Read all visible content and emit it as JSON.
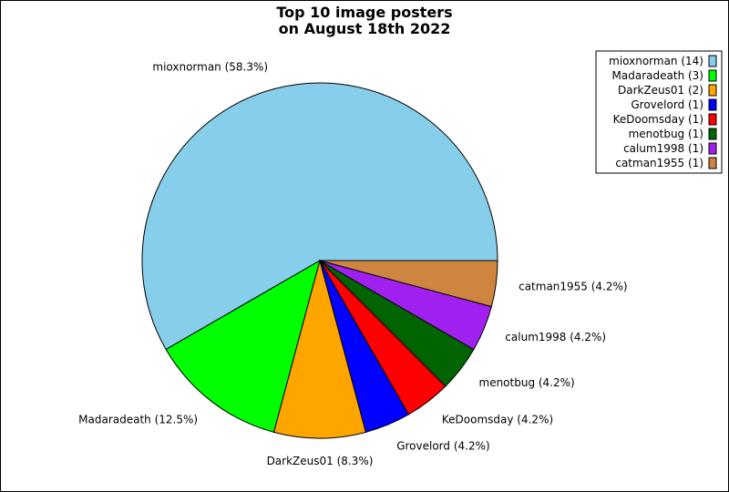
{
  "chart_data": {
    "type": "pie",
    "title_lines": [
      "Top 10 image posters",
      "on August 18th 2022"
    ],
    "legend_position": "top-right",
    "slices": [
      {
        "name": "mioxnorman",
        "count": 14,
        "percent_label": "mioxnorman (58.3%)",
        "legend_label": "mioxnorman (14)",
        "color": "#87ceeb"
      },
      {
        "name": "Madaradeath",
        "count": 3,
        "percent_label": "Madaradeath (12.5%)",
        "legend_label": "Madaradeath (3)",
        "color": "#00ff00"
      },
      {
        "name": "DarkZeus01",
        "count": 2,
        "percent_label": "DarkZeus01 (8.3%)",
        "legend_label": "DarkZeus01 (2)",
        "color": "#ffa500"
      },
      {
        "name": "Grovelord",
        "count": 1,
        "percent_label": "Grovelord (4.2%)",
        "legend_label": "Grovelord (1)",
        "color": "#0000ff"
      },
      {
        "name": "KeDoomsday",
        "count": 1,
        "percent_label": "KeDoomsday (4.2%)",
        "legend_label": "KeDoomsday (1)",
        "color": "#ff0000"
      },
      {
        "name": "menotbug",
        "count": 1,
        "percent_label": "menotbug (4.2%)",
        "legend_label": "menotbug (1)",
        "color": "#006400"
      },
      {
        "name": "calum1998",
        "count": 1,
        "percent_label": "calum1998 (4.2%)",
        "legend_label": "calum1998 (1)",
        "color": "#a020f0"
      },
      {
        "name": "catman1955",
        "count": 1,
        "percent_label": "catman1955 (4.2%)",
        "legend_label": "catman1955 (1)",
        "color": "#cd853f"
      }
    ]
  }
}
